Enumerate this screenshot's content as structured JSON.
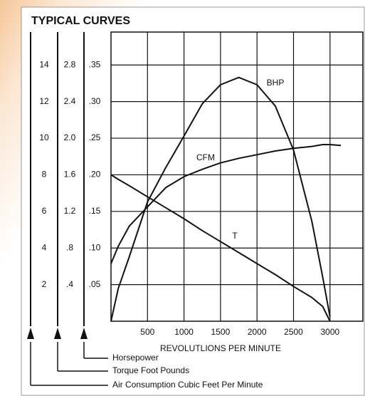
{
  "chart_data": {
    "type": "line",
    "title": "TYPICAL CURVES",
    "x_label": "REVOLUTLIONS PER MINUTE",
    "x": [
      0,
      100,
      250,
      500,
      750,
      1000,
      1250,
      1500,
      1750,
      2000,
      2250,
      2500,
      2750,
      2900,
      3000,
      3150
    ],
    "xlim": [
      0,
      3450
    ],
    "xticks": [
      500,
      1000,
      1500,
      2000,
      2500,
      3000
    ],
    "y_label": "Horsepower",
    "ylim": [
      0,
      0.395
    ],
    "yticks": [
      {
        "value": 0.05,
        "label": ".05"
      },
      {
        "value": 0.1,
        "label": ".10"
      },
      {
        "value": 0.15,
        "label": ".15"
      },
      {
        "value": 0.2,
        "label": ".20"
      },
      {
        "value": 0.25,
        "label": ".25"
      },
      {
        "value": 0.3,
        "label": ".30"
      },
      {
        "value": 0.35,
        "label": ".35"
      }
    ],
    "y2_label": "Torque Foot Pounds",
    "y2lim": [
      0,
      3.16
    ],
    "y2ticks": [
      {
        "value": 0.4,
        "label": ".4"
      },
      {
        "value": 0.8,
        "label": ".8"
      },
      1.2,
      1.6,
      {
        "value": 2.0,
        "label": "2.0"
      },
      2.4,
      2.8
    ],
    "y3_label": "Air Consumption Cubic Feet Per Minute",
    "y3lim": [
      0,
      15.8
    ],
    "y3ticks": [
      2,
      4,
      6,
      8,
      10,
      12,
      14
    ],
    "grid": true,
    "series": [
      {
        "name": "BHP",
        "color": "#111111",
        "axis": "y",
        "values": [
          0,
          0.045,
          0.088,
          0.163,
          0.21,
          0.253,
          0.297,
          0.323,
          0.333,
          0.323,
          0.294,
          0.234,
          0.137,
          0.06,
          0.006,
          null
        ]
      },
      {
        "name": "CFM",
        "color": "#111111",
        "axis": "y3",
        "values": [
          3.15,
          4.1,
          5.2,
          6.25,
          7.3,
          7.9,
          8.3,
          8.65,
          8.9,
          9.1,
          9.3,
          9.45,
          9.55,
          9.65,
          9.65,
          9.6
        ]
      },
      {
        "name": "T",
        "color": "#111111",
        "axis": "y2",
        "values": [
          1.6,
          1.55,
          1.48,
          1.36,
          1.24,
          1.12,
          0.99,
          0.87,
          0.75,
          0.63,
          0.51,
          0.38,
          0.26,
          0.16,
          0,
          null
        ]
      }
    ]
  }
}
